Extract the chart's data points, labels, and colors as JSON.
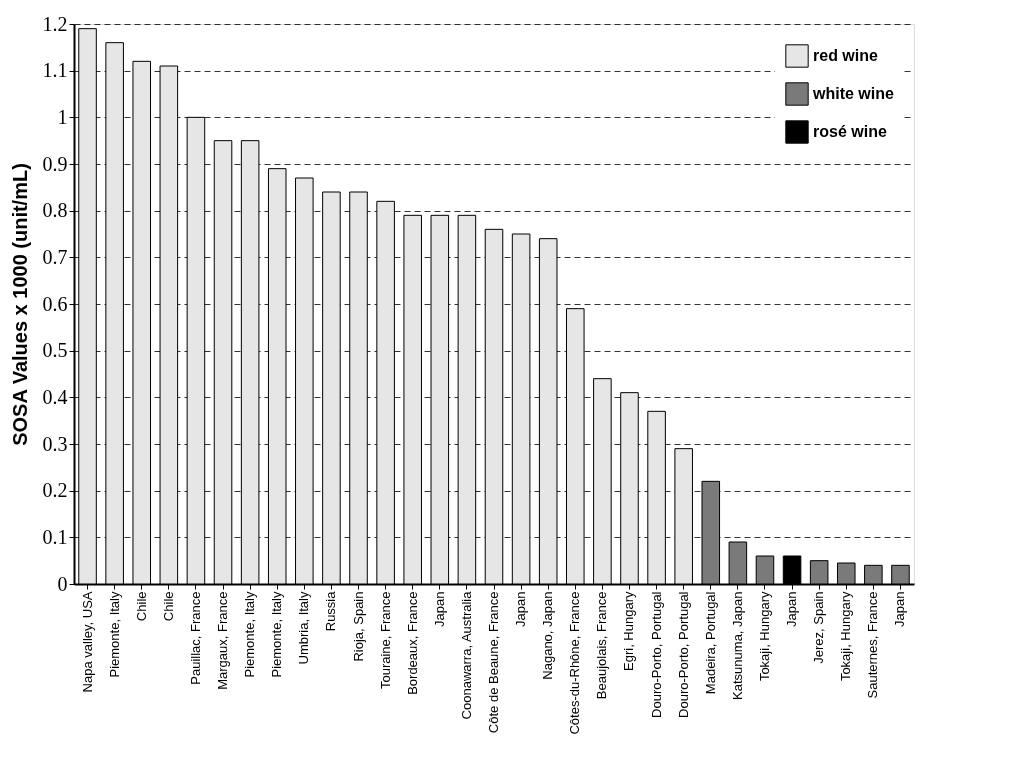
{
  "chart_data": {
    "type": "bar",
    "ylabel": "SOSA Values x 1000 (unit/mL)",
    "categories": [
      "Napa valley, USA",
      "Piemonte, Italy",
      "Chile",
      "Chile",
      "Pauillac, France",
      "Margaux, France",
      "Piemonte, Italy",
      "Piemonte, Italy",
      "Umbria, Italy",
      "Russia",
      "Rioja, Spain",
      "Touraine, France",
      "Bordeaux, France",
      "Japan",
      "Coonawarra, Australia",
      "Côte de Beaune, France",
      "Japan",
      "Nagano, Japan",
      "Côtes-du-Rhône, France",
      "Beaujolais, France",
      "Egri, Hungary",
      "Douro-Porto, Portugal",
      "Douro-Porto, Portugal",
      "Madeira, Portugal",
      "Katsunuma, Japan",
      "Tokaji, Hungary",
      "Japan",
      "Jerez, Spain",
      "Tokaji, Hungary",
      "Sauternes, France",
      "Japan"
    ],
    "series": [
      {
        "name": "red wine",
        "color": "#e6e6e6",
        "values": [
          1.19,
          1.16,
          1.12,
          1.11,
          1.0,
          0.95,
          0.95,
          0.89,
          0.87,
          0.84,
          0.84,
          0.82,
          0.79,
          0.79,
          0.79,
          0.76,
          0.75,
          0.74,
          0.59,
          0.44,
          0.41,
          0.37,
          0.29,
          null,
          null,
          null,
          null,
          null,
          null,
          null,
          null
        ]
      },
      {
        "name": "white wine",
        "color": "#7a7a7a",
        "values": [
          null,
          null,
          null,
          null,
          null,
          null,
          null,
          null,
          null,
          null,
          null,
          null,
          null,
          null,
          null,
          null,
          null,
          null,
          null,
          null,
          null,
          null,
          null,
          0.22,
          0.09,
          0.06,
          null,
          0.05,
          0.045,
          0.04,
          0.04
        ]
      },
      {
        "name": "rosé wine",
        "color": "#000000",
        "values": [
          null,
          null,
          null,
          null,
          null,
          null,
          null,
          null,
          null,
          null,
          null,
          null,
          null,
          null,
          null,
          null,
          null,
          null,
          null,
          null,
          null,
          null,
          null,
          null,
          null,
          null,
          0.06,
          null,
          null,
          null,
          null
        ]
      }
    ],
    "ylim": [
      0,
      1.2
    ],
    "yticks": [
      0,
      0.1,
      0.2,
      0.3,
      0.4,
      0.5,
      0.6,
      0.7,
      0.8,
      0.9,
      1,
      1.1,
      1.2
    ],
    "grid": "y",
    "legend": "top right"
  }
}
